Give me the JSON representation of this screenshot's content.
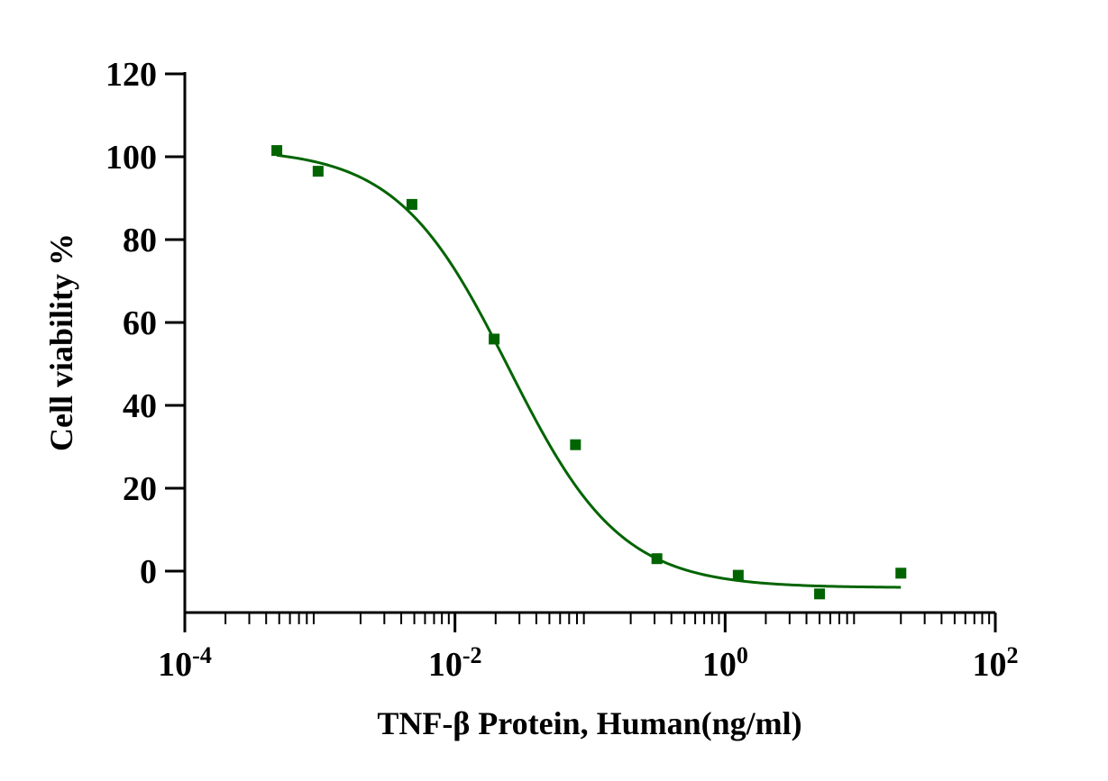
{
  "chart_data": {
    "type": "scatter",
    "title": "",
    "xlabel": "TNF-β Protein, Human(ng/ml)",
    "ylabel": "Cell viability %",
    "xscale": "log",
    "xlim": [
      0.0001,
      100
    ],
    "ylim": [
      -10,
      120
    ],
    "x_ticks": [
      {
        "base": "10",
        "exp": "-4"
      },
      {
        "base": "10",
        "exp": "-2"
      },
      {
        "base": "10",
        "exp": "0"
      },
      {
        "base": "10",
        "exp": "2"
      }
    ],
    "y_ticks": [
      "0",
      "20",
      "40",
      "60",
      "80",
      "100",
      "120"
    ],
    "grid": false,
    "legend": "none",
    "color": "#006400",
    "series": [
      {
        "points": [
          {
            "x": 0.00048,
            "y": 101.5
          },
          {
            "x": 0.00097,
            "y": 96.5
          },
          {
            "x": 0.0048,
            "y": 88.5
          },
          {
            "x": 0.0195,
            "y": 56
          },
          {
            "x": 0.078,
            "y": 30.5
          },
          {
            "x": 0.3125,
            "y": 3
          },
          {
            "x": 1.25,
            "y": -1
          },
          {
            "x": 5.0,
            "y": -5.5
          },
          {
            "x": 20.0,
            "y": -0.5
          }
        ],
        "fit": {
          "type": "4PL",
          "top": 102,
          "bottom": -4,
          "ec50": 0.025,
          "hill": 1.05,
          "x_range": [
            0.00048,
            20
          ]
        }
      }
    ]
  }
}
